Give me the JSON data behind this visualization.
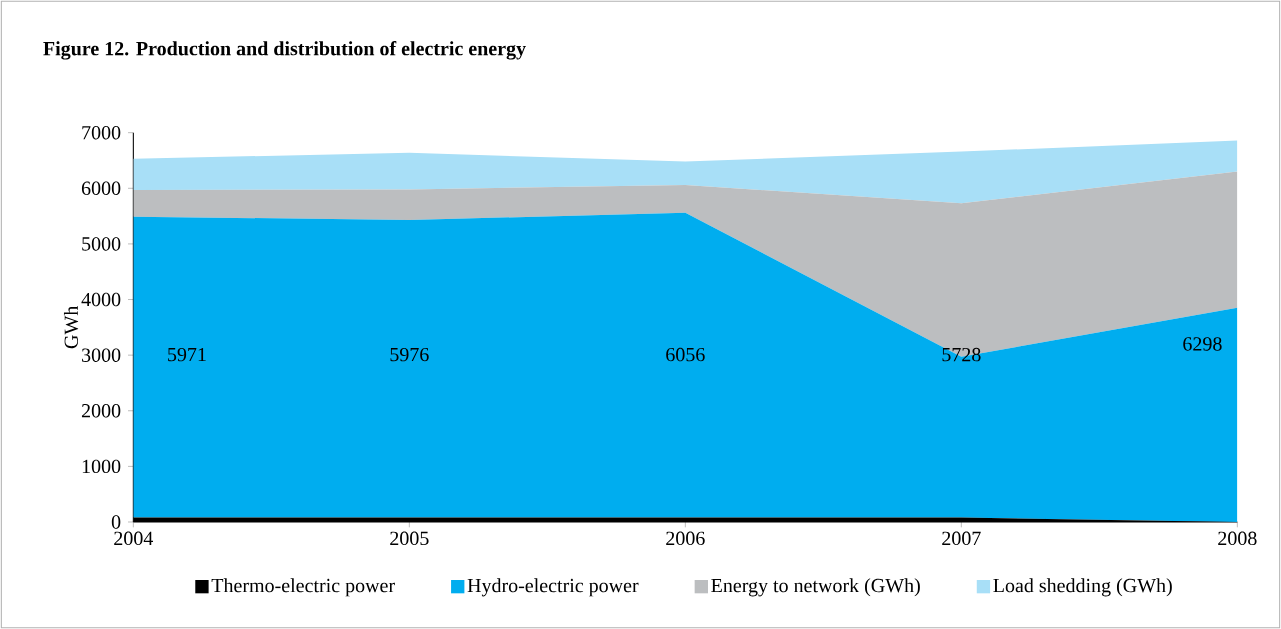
{
  "chart_data": {
    "type": "area",
    "title": "Figure 12. Production and distribution of electric energy",
    "ylabel": "GWh",
    "stacked": true,
    "legend": "bottom",
    "grid": false,
    "x": [
      2004,
      2005,
      2006,
      2007,
      2008
    ],
    "xlim": [
      2004,
      2008
    ],
    "xticks": [
      2004,
      2005,
      2006,
      2007,
      2008
    ],
    "ylim": [
      0,
      7000
    ],
    "yticks": [
      0,
      1000,
      2000,
      3000,
      4000,
      5000,
      6000,
      7000
    ],
    "annotations": [
      "5971",
      "5976",
      "6056",
      "5728",
      "6298"
    ],
    "series": [
      {
        "name": "Thermo-electric power",
        "color": "#000000",
        "values": [
          80,
          80,
          80,
          80,
          0
        ]
      },
      {
        "name": "Hydro-electric power",
        "color": "#00adef",
        "values": [
          5410,
          5350,
          5480,
          2890,
          3850
        ]
      },
      {
        "name": "Energy to network (GWh)",
        "color": "#bcbec0",
        "values": [
          480,
          550,
          500,
          2760,
          2450
        ]
      },
      {
        "name": "Load shedding (GWh)",
        "color": "#a8dff7",
        "values": [
          560,
          660,
          420,
          930,
          560
        ]
      }
    ]
  }
}
